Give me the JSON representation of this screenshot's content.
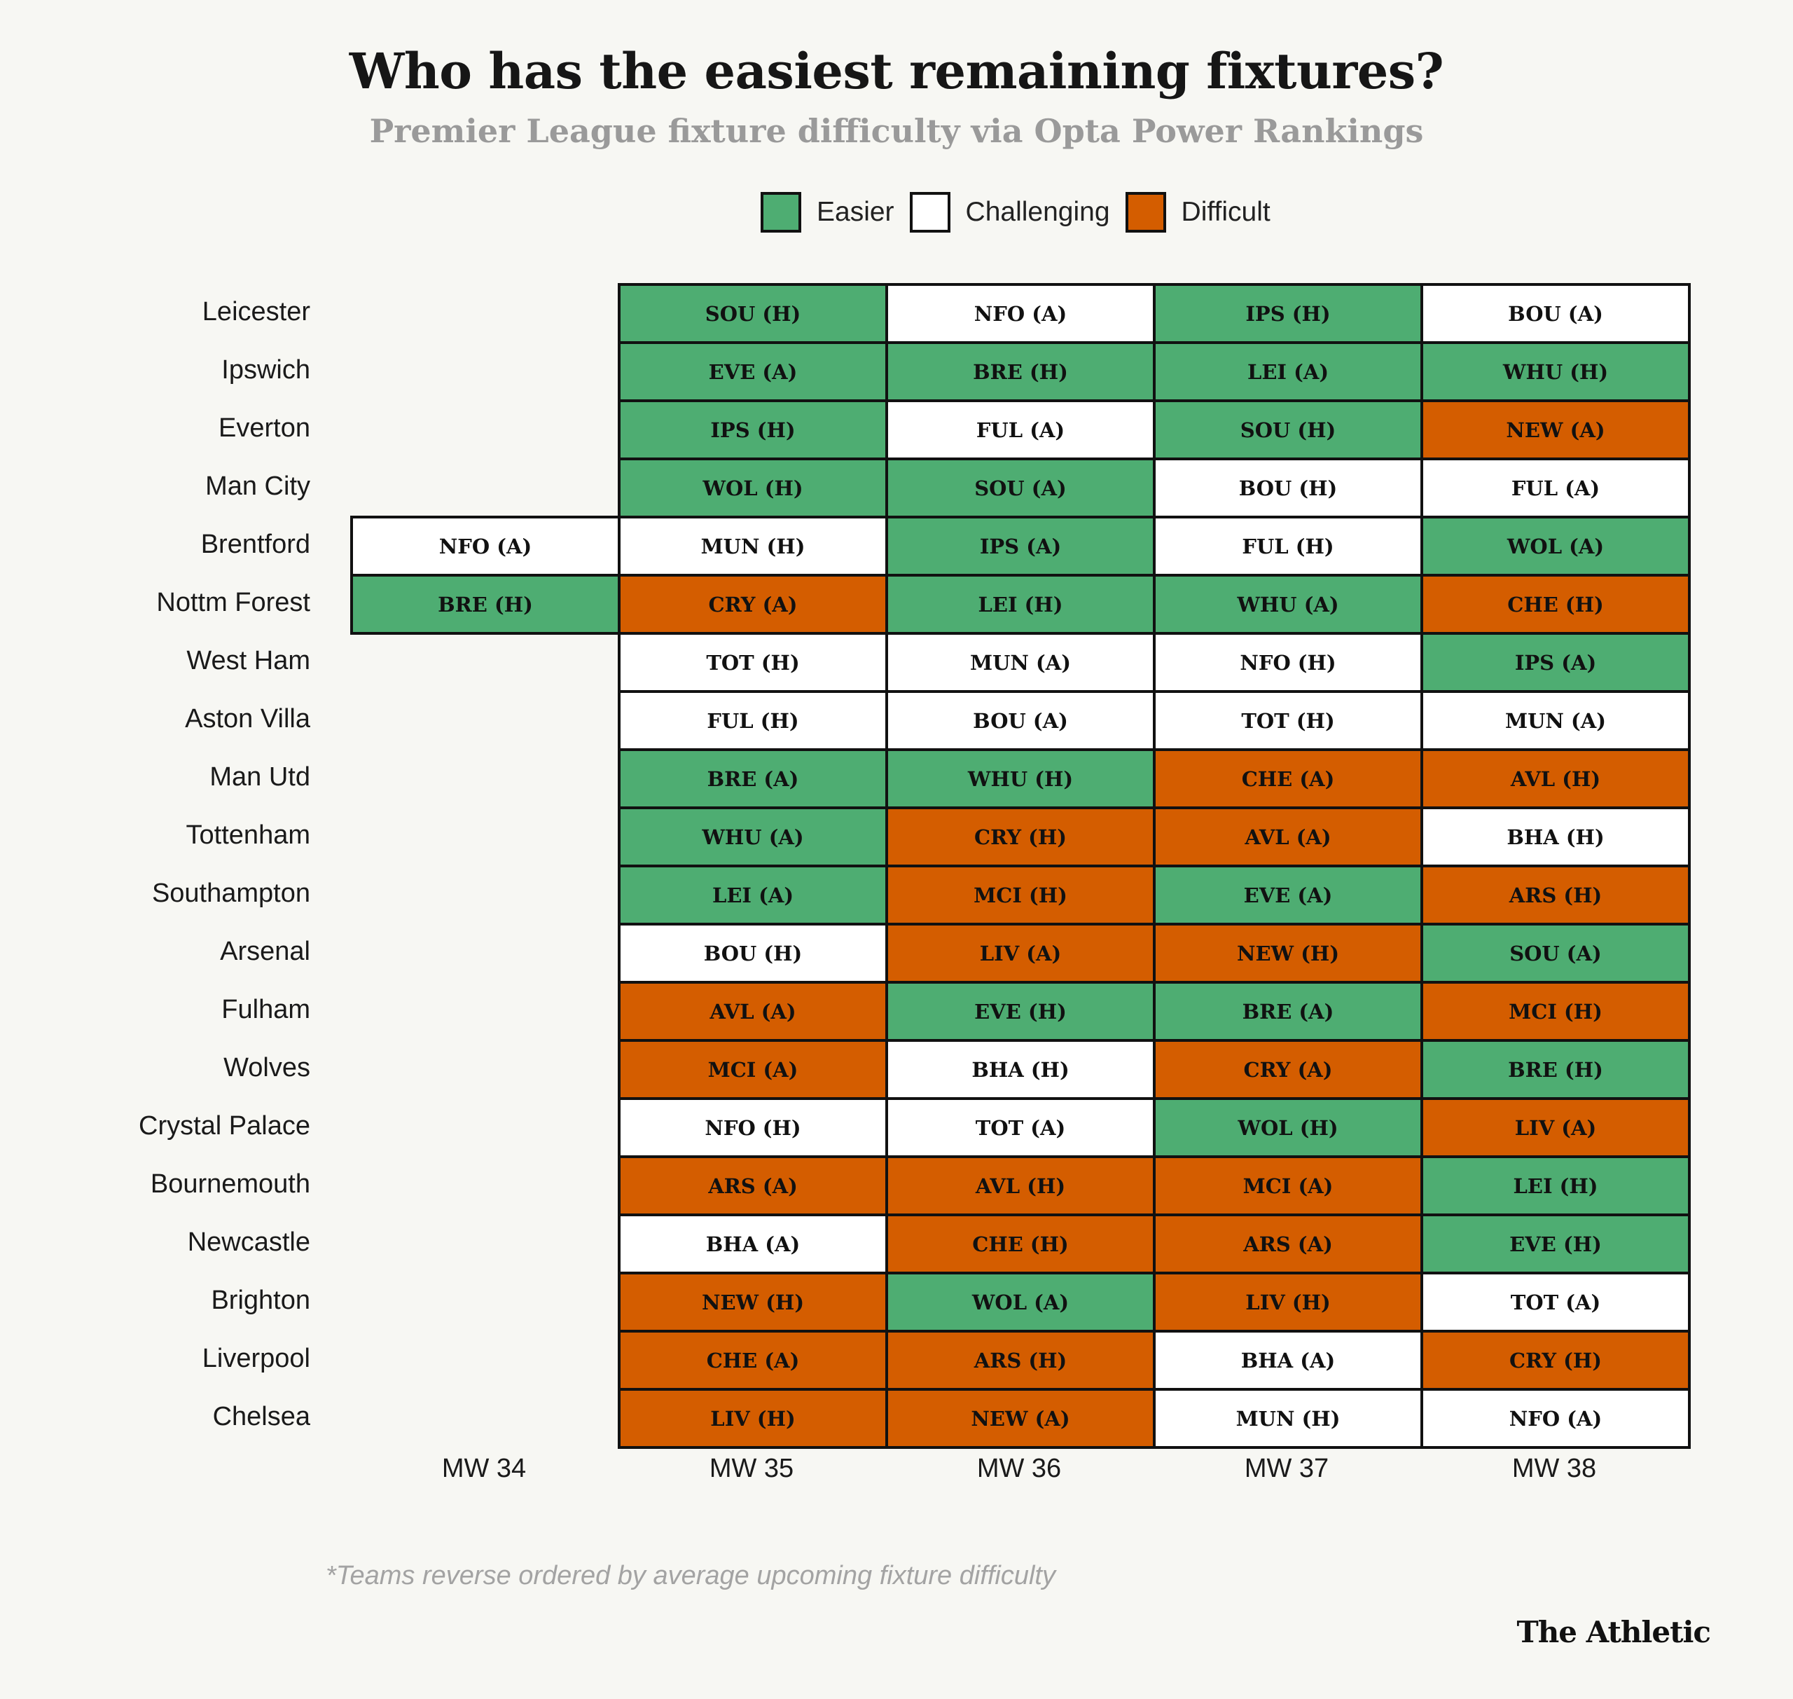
{
  "colors": {
    "easier": "#4ead72",
    "challenging": "#ffffff",
    "difficult": "#d45d00"
  },
  "chart_data": {
    "type": "table",
    "title": "Who has the easiest remaining fixtures?",
    "subtitle": "Premier League fixture difficulty via Opta Power Rankings",
    "legend": [
      {
        "key": "easier",
        "label": "Easier"
      },
      {
        "key": "challenging",
        "label": "Challenging"
      },
      {
        "key": "difficult",
        "label": "Difficult"
      }
    ],
    "columns": [
      "MW 34",
      "MW 35",
      "MW 36",
      "MW 37",
      "MW 38"
    ],
    "rows": [
      {
        "team": "Leicester",
        "fixtures": [
          null,
          [
            "SOU (H)",
            "easier"
          ],
          [
            "NFO (A)",
            "challenging"
          ],
          [
            "IPS (H)",
            "easier"
          ],
          [
            "BOU (A)",
            "challenging"
          ]
        ]
      },
      {
        "team": "Ipswich",
        "fixtures": [
          null,
          [
            "EVE (A)",
            "easier"
          ],
          [
            "BRE (H)",
            "easier"
          ],
          [
            "LEI (A)",
            "easier"
          ],
          [
            "WHU (H)",
            "easier"
          ]
        ]
      },
      {
        "team": "Everton",
        "fixtures": [
          null,
          [
            "IPS (H)",
            "easier"
          ],
          [
            "FUL (A)",
            "challenging"
          ],
          [
            "SOU (H)",
            "easier"
          ],
          [
            "NEW (A)",
            "difficult"
          ]
        ]
      },
      {
        "team": "Man City",
        "fixtures": [
          null,
          [
            "WOL (H)",
            "easier"
          ],
          [
            "SOU (A)",
            "easier"
          ],
          [
            "BOU (H)",
            "challenging"
          ],
          [
            "FUL (A)",
            "challenging"
          ]
        ]
      },
      {
        "team": "Brentford",
        "fixtures": [
          [
            "NFO (A)",
            "challenging"
          ],
          [
            "MUN (H)",
            "challenging"
          ],
          [
            "IPS (A)",
            "easier"
          ],
          [
            "FUL (H)",
            "challenging"
          ],
          [
            "WOL (A)",
            "easier"
          ]
        ]
      },
      {
        "team": "Nottm Forest",
        "fixtures": [
          [
            "BRE (H)",
            "easier"
          ],
          [
            "CRY (A)",
            "difficult"
          ],
          [
            "LEI (H)",
            "easier"
          ],
          [
            "WHU (A)",
            "easier"
          ],
          [
            "CHE (H)",
            "difficult"
          ]
        ]
      },
      {
        "team": "West Ham",
        "fixtures": [
          null,
          [
            "TOT (H)",
            "challenging"
          ],
          [
            "MUN (A)",
            "challenging"
          ],
          [
            "NFO (H)",
            "challenging"
          ],
          [
            "IPS (A)",
            "easier"
          ]
        ]
      },
      {
        "team": "Aston Villa",
        "fixtures": [
          null,
          [
            "FUL (H)",
            "challenging"
          ],
          [
            "BOU (A)",
            "challenging"
          ],
          [
            "TOT (H)",
            "challenging"
          ],
          [
            "MUN (A)",
            "challenging"
          ]
        ]
      },
      {
        "team": "Man Utd",
        "fixtures": [
          null,
          [
            "BRE (A)",
            "easier"
          ],
          [
            "WHU (H)",
            "easier"
          ],
          [
            "CHE (A)",
            "difficult"
          ],
          [
            "AVL (H)",
            "difficult"
          ]
        ]
      },
      {
        "team": "Tottenham",
        "fixtures": [
          null,
          [
            "WHU (A)",
            "easier"
          ],
          [
            "CRY (H)",
            "difficult"
          ],
          [
            "AVL (A)",
            "difficult"
          ],
          [
            "BHA (H)",
            "challenging"
          ]
        ]
      },
      {
        "team": "Southampton",
        "fixtures": [
          null,
          [
            "LEI (A)",
            "easier"
          ],
          [
            "MCI (H)",
            "difficult"
          ],
          [
            "EVE (A)",
            "easier"
          ],
          [
            "ARS (H)",
            "difficult"
          ]
        ]
      },
      {
        "team": "Arsenal",
        "fixtures": [
          null,
          [
            "BOU (H)",
            "challenging"
          ],
          [
            "LIV (A)",
            "difficult"
          ],
          [
            "NEW (H)",
            "difficult"
          ],
          [
            "SOU (A)",
            "easier"
          ]
        ]
      },
      {
        "team": "Fulham",
        "fixtures": [
          null,
          [
            "AVL (A)",
            "difficult"
          ],
          [
            "EVE (H)",
            "easier"
          ],
          [
            "BRE (A)",
            "easier"
          ],
          [
            "MCI (H)",
            "difficult"
          ]
        ]
      },
      {
        "team": "Wolves",
        "fixtures": [
          null,
          [
            "MCI (A)",
            "difficult"
          ],
          [
            "BHA (H)",
            "challenging"
          ],
          [
            "CRY (A)",
            "difficult"
          ],
          [
            "BRE (H)",
            "easier"
          ]
        ]
      },
      {
        "team": "Crystal Palace",
        "fixtures": [
          null,
          [
            "NFO (H)",
            "challenging"
          ],
          [
            "TOT (A)",
            "challenging"
          ],
          [
            "WOL (H)",
            "easier"
          ],
          [
            "LIV (A)",
            "difficult"
          ]
        ]
      },
      {
        "team": "Bournemouth",
        "fixtures": [
          null,
          [
            "ARS (A)",
            "difficult"
          ],
          [
            "AVL (H)",
            "difficult"
          ],
          [
            "MCI (A)",
            "difficult"
          ],
          [
            "LEI (H)",
            "easier"
          ]
        ]
      },
      {
        "team": "Newcastle",
        "fixtures": [
          null,
          [
            "BHA (A)",
            "challenging"
          ],
          [
            "CHE (H)",
            "difficult"
          ],
          [
            "ARS (A)",
            "difficult"
          ],
          [
            "EVE (H)",
            "easier"
          ]
        ]
      },
      {
        "team": "Brighton",
        "fixtures": [
          null,
          [
            "NEW (H)",
            "difficult"
          ],
          [
            "WOL (A)",
            "easier"
          ],
          [
            "LIV (H)",
            "difficult"
          ],
          [
            "TOT (A)",
            "challenging"
          ]
        ]
      },
      {
        "team": "Liverpool",
        "fixtures": [
          null,
          [
            "CHE (A)",
            "difficult"
          ],
          [
            "ARS (H)",
            "difficult"
          ],
          [
            "BHA (A)",
            "challenging"
          ],
          [
            "CRY (H)",
            "difficult"
          ]
        ]
      },
      {
        "team": "Chelsea",
        "fixtures": [
          null,
          [
            "LIV (H)",
            "difficult"
          ],
          [
            "NEW (A)",
            "difficult"
          ],
          [
            "MUN (H)",
            "challenging"
          ],
          [
            "NFO (A)",
            "challenging"
          ]
        ]
      }
    ],
    "footnote": "*Teams reverse ordered by average upcoming fixture difficulty"
  },
  "brand": "The Athletic"
}
